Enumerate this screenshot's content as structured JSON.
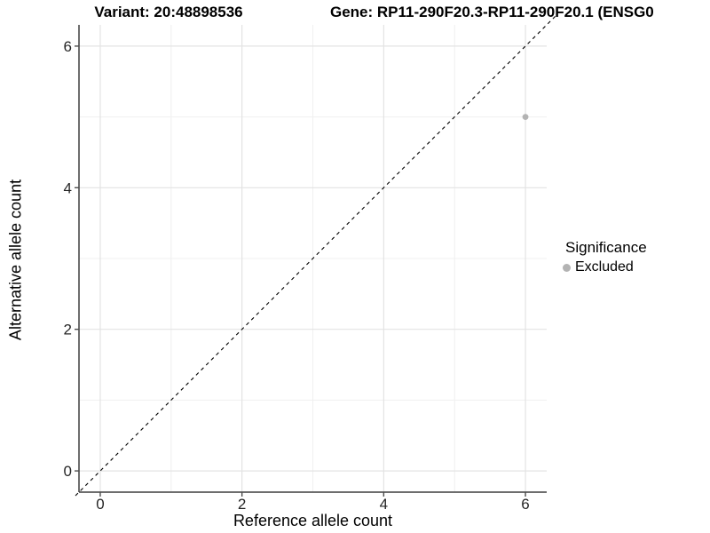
{
  "chart_data": {
    "type": "scatter",
    "title_left": "Variant: 20:48898536",
    "title_right": "Gene: RP11-290F20.3-RP11-290F20.1 (ENSG0",
    "xlabel": "Reference allele count",
    "ylabel": "Alternative allele count",
    "xlim": [
      -0.3,
      6.3
    ],
    "ylim": [
      -0.3,
      6.3
    ],
    "xticks": [
      0,
      2,
      4,
      6
    ],
    "yticks": [
      0,
      2,
      4,
      6
    ],
    "xtick_labels": [
      "0",
      "2",
      "4",
      "6"
    ],
    "ytick_labels": [
      "0",
      "2",
      "4",
      "6"
    ],
    "minor_grid_x": [
      1,
      3,
      5
    ],
    "minor_grid_y": [
      1,
      3,
      5
    ],
    "grid": true,
    "reference_line": {
      "slope": 1,
      "intercept": 0,
      "style": "dashed",
      "color": "#000000"
    },
    "series": [
      {
        "name": "Excluded",
        "color": "#b3b3b3",
        "points": [
          {
            "x": 6,
            "y": 5
          }
        ]
      }
    ],
    "legend": {
      "position": "right",
      "title": "Significance",
      "items": [
        {
          "label": "Excluded",
          "color": "#b3b3b3",
          "marker": "dot"
        }
      ]
    },
    "colors": {
      "background": "#ffffff",
      "axis_line": "#3f3f3f",
      "tick_mark": "#4d4d4d",
      "tick_label": "#262626",
      "grid_major": "#e3e3e3",
      "grid_minor": "#f0f0f0",
      "point": "#b3b3b3",
      "dashed_line": "#000000"
    }
  }
}
